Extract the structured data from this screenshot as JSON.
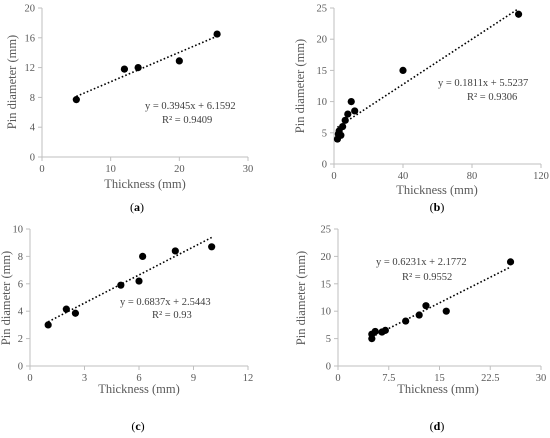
{
  "chart_data": [
    {
      "type": "scatter",
      "panel_label": "a",
      "xlabel": "Thickness (mm)",
      "ylabel": "Pin diameter (mm)",
      "xlim": [
        0,
        30
      ],
      "ylim": [
        0,
        20
      ],
      "xticks": [
        "0",
        "10",
        "20",
        "30"
      ],
      "yticks": [
        "0",
        "4",
        "8",
        "12",
        "16",
        "20"
      ],
      "points": [
        [
          5,
          7.7
        ],
        [
          12,
          11.8
        ],
        [
          14,
          12.0
        ],
        [
          20,
          12.9
        ],
        [
          25.5,
          16.5
        ]
      ],
      "trendline": {
        "slope": 0.3945,
        "intercept": 6.1592,
        "x_range": [
          5,
          25.5
        ]
      },
      "equation": "y = 0.3945x + 6.1592",
      "r2": "R² = 0.9409"
    },
    {
      "type": "scatter",
      "panel_label": "b",
      "xlabel": "Thickness (mm)",
      "ylabel": "Pin diameter (mm)",
      "xlim": [
        0,
        120
      ],
      "ylim": [
        0,
        25
      ],
      "xticks": [
        "0",
        "40",
        "80",
        "120"
      ],
      "yticks": [
        "0",
        "5",
        "10",
        "15",
        "20",
        "25"
      ],
      "points": [
        [
          2,
          4
        ],
        [
          2.5,
          4.8
        ],
        [
          3,
          5.3
        ],
        [
          4,
          4.6
        ],
        [
          5,
          6
        ],
        [
          6.5,
          7
        ],
        [
          8,
          8
        ],
        [
          10,
          10
        ],
        [
          12,
          8.5
        ],
        [
          40,
          15
        ],
        [
          107,
          24
        ]
      ],
      "trendline": {
        "slope": 0.1811,
        "intercept": 5.5237,
        "x_range": [
          2,
          107
        ]
      },
      "equation": "y = 0.1811x + 5.5237",
      "r2": "R² = 0.9306"
    },
    {
      "type": "scatter",
      "panel_label": "c",
      "xlabel": "Thickness (mm)",
      "ylabel": "Pin diameter (mm)",
      "xlim": [
        0,
        12
      ],
      "ylim": [
        0,
        10
      ],
      "xticks": [
        "0",
        "3",
        "6",
        "9",
        "12"
      ],
      "yticks": [
        "0",
        "2",
        "4",
        "6",
        "8",
        "10"
      ],
      "points": [
        [
          1,
          3
        ],
        [
          2,
          4.15
        ],
        [
          2.5,
          3.85
        ],
        [
          5,
          5.9
        ],
        [
          6,
          6.2
        ],
        [
          6.2,
          8
        ],
        [
          8,
          8.4
        ],
        [
          10,
          8.7
        ]
      ],
      "trendline": {
        "slope": 0.6837,
        "intercept": 2.5443,
        "x_range": [
          1,
          10
        ]
      },
      "equation": "y = 0.6837x + 2.5443",
      "r2": "R² = 0.93"
    },
    {
      "type": "scatter",
      "panel_label": "d",
      "xlabel": "Thickness (mm)",
      "ylabel": "Pin diameter (mm)",
      "xlim": [
        0,
        30
      ],
      "ylim": [
        0,
        25
      ],
      "xticks": [
        "0",
        "7.5",
        "15",
        "22.5",
        "30"
      ],
      "yticks": [
        "0",
        "5",
        "10",
        "15",
        "20",
        "25"
      ],
      "points": [
        [
          5,
          5
        ],
        [
          5,
          5.8
        ],
        [
          5.5,
          6.3
        ],
        [
          6.5,
          6.2
        ],
        [
          7,
          6.5
        ],
        [
          10,
          8.2
        ],
        [
          12,
          9.3
        ],
        [
          13,
          11
        ],
        [
          16,
          10
        ],
        [
          25.5,
          19
        ]
      ],
      "trendline": {
        "slope": 0.6231,
        "intercept": 2.1772,
        "x_range": [
          5,
          25.5
        ]
      },
      "equation": "y = 0.6231x + 2.1772",
      "r2": "R² = 0.9552"
    }
  ]
}
